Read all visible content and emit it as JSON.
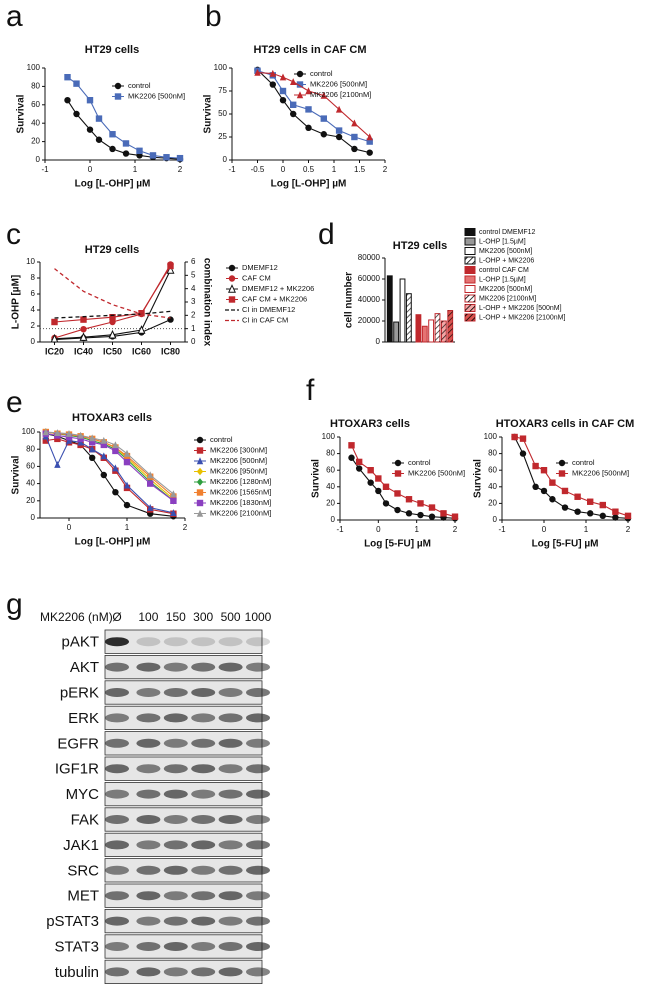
{
  "chart_data": [
    {
      "type": "line",
      "panel": "a",
      "title": "HT29 cells",
      "x_label": "Log [L-OHP] µM",
      "y_label": "Survival",
      "x": [
        -0.5,
        -0.3,
        0,
        0.2,
        0.5,
        0.8,
        1.1,
        1.4,
        1.7,
        2.0
      ],
      "series": [
        {
          "name": "control",
          "color": "#111111",
          "marker": "circle",
          "values": [
            65,
            50,
            33,
            22,
            12,
            7,
            5,
            3,
            2,
            1
          ]
        },
        {
          "name": "MK2206 [500nM]",
          "color": "#4a6bb8",
          "marker": "square",
          "values": [
            90,
            83,
            65,
            45,
            28,
            18,
            10,
            5,
            3,
            2
          ]
        }
      ],
      "xlim": [
        -1,
        2
      ],
      "xticks": [
        -1,
        0,
        1,
        2
      ],
      "ylim": [
        0,
        100
      ],
      "yticks": [
        0,
        20,
        40,
        60,
        80,
        100
      ]
    },
    {
      "type": "line",
      "panel": "b",
      "title": "HT29 cells in CAF CM",
      "x_label": "Log [L-OHP] µM",
      "y_label": "Survival",
      "x": [
        -0.5,
        -0.2,
        0,
        0.2,
        0.5,
        0.8,
        1.1,
        1.4,
        1.7
      ],
      "series": [
        {
          "name": "control",
          "color": "#111111",
          "marker": "circle",
          "values": [
            98,
            82,
            65,
            50,
            35,
            28,
            25,
            12,
            8
          ]
        },
        {
          "name": "MK2206 [500nM]",
          "color": "#4a6bb8",
          "marker": "square",
          "values": [
            97,
            92,
            75,
            60,
            55,
            45,
            32,
            25,
            20
          ]
        },
        {
          "name": "MK2206 [2100nM]",
          "color": "#c0282d",
          "marker": "triangle",
          "values": [
            95,
            94,
            90,
            85,
            75,
            70,
            55,
            40,
            25
          ]
        }
      ],
      "xlim": [
        -1,
        2
      ],
      "xticks": [
        -1,
        -0.5,
        0,
        0.5,
        1,
        1.5,
        2
      ],
      "ylim": [
        0,
        100
      ],
      "yticks": [
        0,
        25,
        50,
        75,
        100
      ]
    },
    {
      "type": "line",
      "panel": "c",
      "title": "HT29 cells",
      "y_label": "L-OHP [µM]",
      "y2_label": "combination index",
      "categories": [
        "IC20",
        "IC40",
        "IC50",
        "IC60",
        "IC80"
      ],
      "series": [
        {
          "name": "DMEMF12",
          "color": "#111111",
          "marker": "circle",
          "values": [
            0.3,
            0.5,
            0.7,
            1.2,
            2.8
          ]
        },
        {
          "name": "CAF CM",
          "color": "#c0282d",
          "marker": "circle",
          "values": [
            0.5,
            1.6,
            2.5,
            3.5,
            9.7
          ]
        },
        {
          "name": "DMEMF12 + MK2206",
          "color": "#111111",
          "marker": "triangle",
          "values": [
            0.4,
            0.6,
            0.9,
            1.5,
            9.0
          ]
        },
        {
          "name": "CAF CM + MK2206",
          "color": "#c0282d",
          "marker": "square",
          "values": [
            2.5,
            2.8,
            3.1,
            3.6,
            9.5
          ]
        },
        {
          "name": "CI in DMEMF12",
          "color": "#111111",
          "dash": true,
          "axis": "y2",
          "values": [
            1.8,
            1.9,
            2.0,
            2.1,
            2.3
          ]
        },
        {
          "name": "CI in CAF CM",
          "color": "#c0282d",
          "dash": true,
          "axis": "y2",
          "values": [
            5.5,
            3.8,
            2.8,
            2.1,
            1.8
          ]
        }
      ],
      "ylim": [
        0,
        10
      ],
      "yticks": [
        0,
        2,
        4,
        6,
        8,
        10
      ],
      "y2lim": [
        0,
        6
      ],
      "y2ticks": [
        0,
        1,
        2,
        3,
        4,
        5,
        6
      ],
      "y2_reference": 1
    },
    {
      "type": "bar",
      "panel": "d",
      "title": "HT29 cells",
      "y_label": "cell number",
      "categories": [
        "control DMEMF12",
        "L-OHP [1.5µM]",
        "MK2206 [500nM]",
        "L-OHP + MK2206",
        "control CAF CM",
        "L-OHP [1.5µM]",
        "MK2206 [500nM]",
        "MK2206 [2100nM]",
        "L-OHP + MK2206 [500nM]",
        "L-OHP + MK2206 [2100nM]"
      ],
      "values": [
        63000,
        19000,
        60000,
        46000,
        26000,
        15000,
        21000,
        27000,
        20000,
        30000
      ],
      "colors": [
        "#111111",
        "#999999",
        "#ffffff",
        "#ffffff",
        "#c0282d",
        "#e57373",
        "#ffffff",
        "#ffffff",
        "#f4a6a6",
        "#d9534f"
      ],
      "edge_colors": [
        "#111111",
        "#111111",
        "#111111",
        "#111111",
        "#c0282d",
        "#c0282d",
        "#c0282d",
        "#c0282d",
        "#c0282d",
        "#c0282d"
      ],
      "hatch": [
        false,
        false,
        false,
        true,
        false,
        false,
        false,
        true,
        true,
        true
      ],
      "ylim": [
        0,
        80000
      ],
      "yticks": [
        0,
        20000,
        40000,
        60000,
        80000
      ]
    },
    {
      "type": "line",
      "panel": "e",
      "title": "HTOXAR3 cells",
      "x_label": "Log [L-OHP] µM",
      "y_label": "Survival",
      "x": [
        -0.4,
        -0.2,
        0,
        0.2,
        0.4,
        0.6,
        0.8,
        1.0,
        1.4,
        1.8
      ],
      "series": [
        {
          "name": "control",
          "color": "#111111",
          "marker": "circle",
          "values": [
            98,
            95,
            90,
            85,
            70,
            50,
            30,
            15,
            5,
            2
          ]
        },
        {
          "name": "MK2206 [300nM]",
          "color": "#c0282d",
          "marker": "square",
          "values": [
            90,
            92,
            88,
            85,
            80,
            70,
            55,
            35,
            10,
            5
          ]
        },
        {
          "name": "MK2206 [500nM]",
          "color": "#3a4fb0",
          "marker": "triangle",
          "values": [
            95,
            62,
            90,
            88,
            80,
            72,
            58,
            38,
            12,
            6
          ]
        },
        {
          "name": "MK2206 [950nM]",
          "color": "#e8c000",
          "marker": "diamond",
          "values": [
            100,
            98,
            97,
            95,
            92,
            88,
            82,
            70,
            45,
            22
          ]
        },
        {
          "name": "MK2206 [1280nM]",
          "color": "#2e9e3e",
          "marker": "diamond",
          "values": [
            100,
            98,
            96,
            94,
            90,
            86,
            80,
            68,
            42,
            20
          ]
        },
        {
          "name": "MK2206 [1565nM]",
          "color": "#f08030",
          "marker": "square",
          "values": [
            100,
            98,
            97,
            95,
            92,
            88,
            82,
            72,
            48,
            25
          ]
        },
        {
          "name": "MK2206 [1830nM]",
          "color": "#8a3fc0",
          "marker": "square",
          "values": [
            98,
            96,
            94,
            92,
            88,
            85,
            78,
            65,
            40,
            20
          ]
        },
        {
          "name": "MK2206 [2100nM]",
          "color": "#999999",
          "marker": "triangle",
          "values": [
            100,
            99,
            98,
            96,
            93,
            90,
            85,
            75,
            50,
            28
          ]
        }
      ],
      "xlim": [
        -0.5,
        2
      ],
      "xticks": [
        0,
        1,
        2
      ],
      "ylim": [
        0,
        100
      ],
      "yticks": [
        0,
        20,
        40,
        60,
        80,
        100
      ]
    },
    {
      "type": "line",
      "panel": "f",
      "title": "HTOXAR3 cells",
      "x_label": "Log [5-FU] µM",
      "y_label": "Survival",
      "x": [
        -0.7,
        -0.5,
        -0.2,
        0,
        0.2,
        0.5,
        0.8,
        1.1,
        1.4,
        1.7,
        2.0
      ],
      "series": [
        {
          "name": "control",
          "color": "#111111",
          "marker": "circle",
          "values": [
            75,
            62,
            45,
            35,
            20,
            12,
            8,
            6,
            4,
            3,
            2
          ]
        },
        {
          "name": "MK2206 [500nM]",
          "color": "#c0282d",
          "marker": "square",
          "values": [
            90,
            70,
            60,
            50,
            40,
            32,
            25,
            20,
            15,
            8,
            4
          ]
        }
      ],
      "xlim": [
        -1,
        2
      ],
      "xticks": [
        -1,
        0,
        1,
        2
      ],
      "ylim": [
        0,
        100
      ],
      "yticks": [
        0,
        20,
        40,
        60,
        80,
        100
      ]
    },
    {
      "type": "line",
      "title": "HTOXAR3 cells in CAF CM",
      "x_label": "Log [5-FU] µM",
      "y_label": "Survival",
      "x": [
        -0.7,
        -0.5,
        -0.2,
        0,
        0.2,
        0.5,
        0.8,
        1.1,
        1.4,
        1.7,
        2.0
      ],
      "series": [
        {
          "name": "control",
          "color": "#111111",
          "marker": "circle",
          "values": [
            100,
            80,
            40,
            35,
            25,
            15,
            10,
            8,
            5,
            3,
            2
          ]
        },
        {
          "name": "MK2206 [500nM]",
          "color": "#c0282d",
          "marker": "square",
          "values": [
            100,
            98,
            65,
            60,
            45,
            35,
            28,
            22,
            18,
            10,
            5
          ]
        }
      ],
      "xlim": [
        -1,
        2
      ],
      "xticks": [
        -1,
        0,
        1,
        2
      ],
      "ylim": [
        0,
        100
      ],
      "yticks": [
        0,
        20,
        40,
        60,
        80,
        100
      ]
    }
  ],
  "blot": {
    "panel": "g",
    "treatment_label": "MK2206 (nM)",
    "lanes": [
      "Ø",
      "100",
      "150",
      "300",
      "500",
      "1000"
    ],
    "proteins": [
      "pAKT",
      "AKT",
      "pERK",
      "ERK",
      "EGFR",
      "IGF1R",
      "MYC",
      "FAK",
      "JAK1",
      "SRC",
      "MET",
      "pSTAT3",
      "STAT3",
      "tubulin"
    ]
  }
}
